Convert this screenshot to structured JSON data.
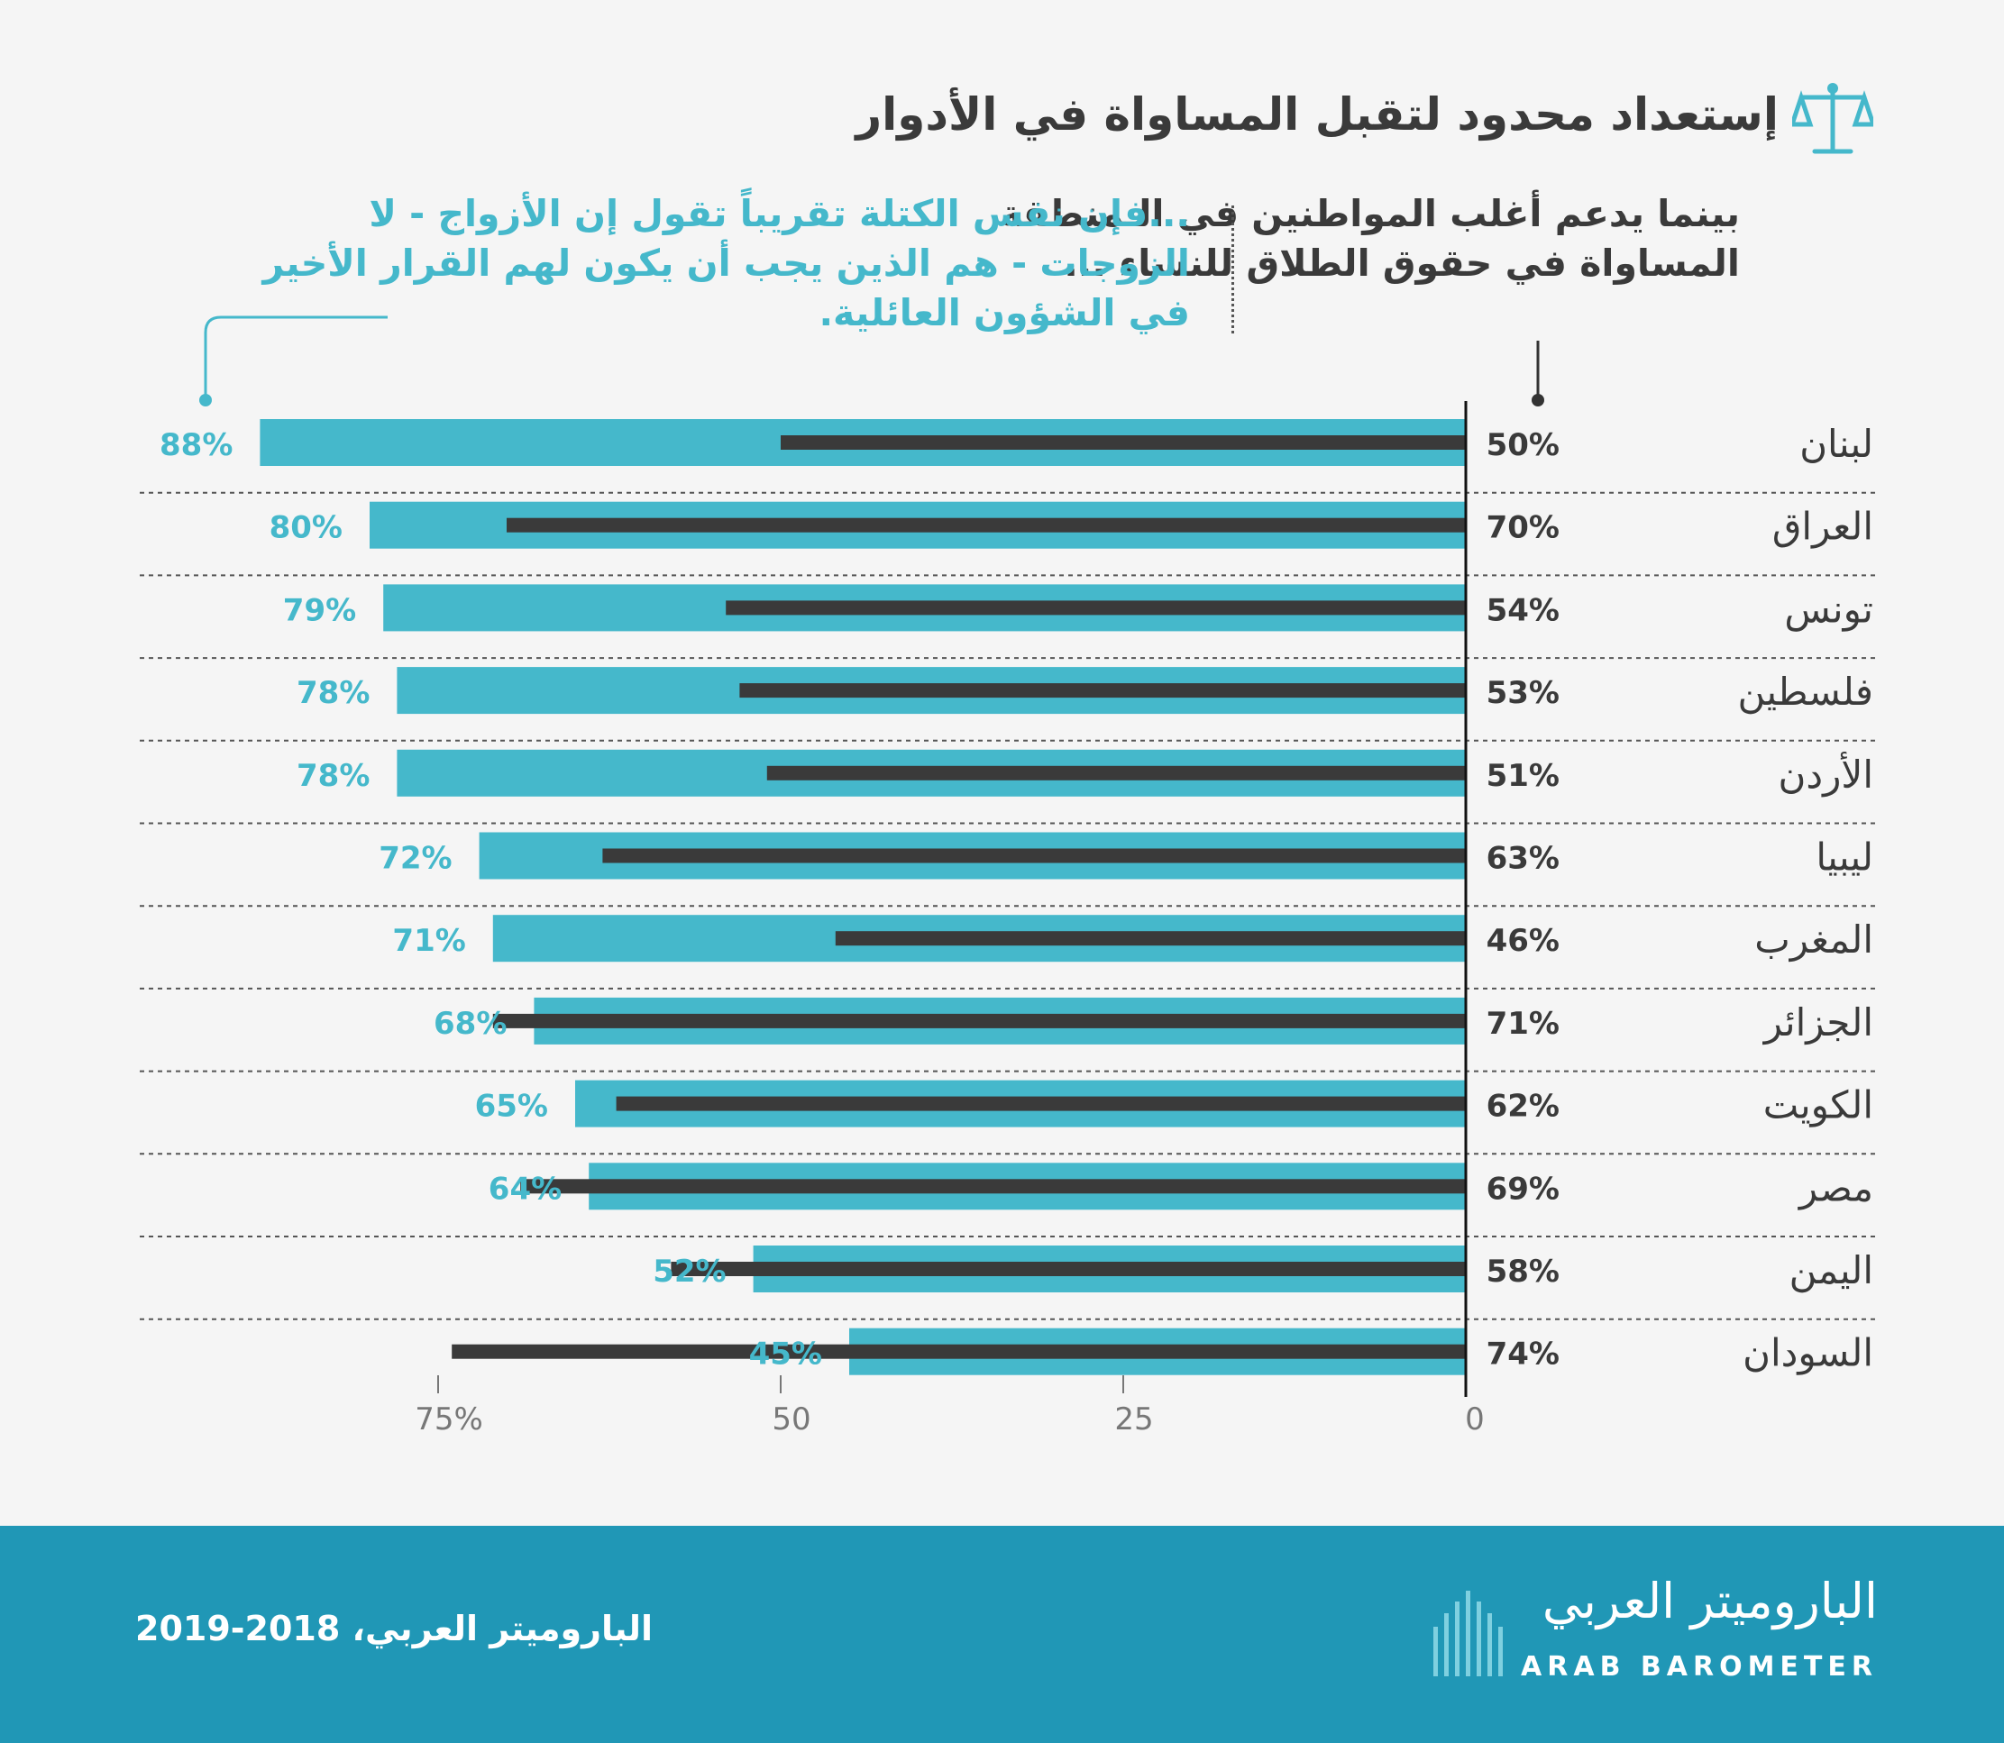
{
  "title": "إستعداد محدود لتقبل المساواة في الأدوار",
  "left_caption": "بينما يدعم أغلب المواطنين في الـمنطقة المساواة في حقوق الطلاق للنساء ...",
  "right_caption": "...فإن نفس الكتلة تقريباً تقول إن الأزواج - لا الزوجات - هم الذين يجب أن يكون لهم القرار الأخير في الشؤون العائلية.",
  "footer": {
    "source": "الباروميتر العربي، 2018-2019",
    "logo_ar": "الباروميتر العربي",
    "logo_en": "ARAB BAROMETER"
  },
  "colors": {
    "teal": "#45b8cb",
    "dark": "#3a3a3a",
    "footer": "#2097b6"
  },
  "icons": [
    "scale-icon",
    "barometer-logo-icon"
  ],
  "chart_data": {
    "type": "bar",
    "orientation": "horizontal",
    "direction": "right-to-left",
    "categories": [
      "لبنان",
      "العراق",
      "تونس",
      "فلسطين",
      "الأردن",
      "ليبيا",
      "المغرب",
      "الجزائر",
      "الكويت",
      "مصر",
      "اليمن",
      "السودان"
    ],
    "series": [
      {
        "values": [
          88,
          80,
          79,
          78,
          78,
          72,
          71,
          68,
          65,
          64,
          52,
          45
        ],
        "labels": [
          "88%",
          "80%",
          "79%",
          "78%",
          "78%",
          "72%",
          "71%",
          "68%",
          "65%",
          "64%",
          "52%",
          "45%"
        ],
        "color": "#45b8cb"
      },
      {
        "values": [
          50,
          70,
          54,
          53,
          51,
          63,
          46,
          71,
          62,
          69,
          58,
          74
        ],
        "labels": [
          "50%",
          "70%",
          "54%",
          "53%",
          "51%",
          "63%",
          "46%",
          "71%",
          "62%",
          "69%",
          "58%",
          "74%"
        ],
        "color": "#3a3a3a"
      }
    ],
    "x_ticks": [
      "0",
      "25",
      "50",
      "75%"
    ],
    "x_tick_values": [
      0,
      25,
      50,
      75
    ],
    "xlim": [
      0,
      100
    ],
    "grid": false
  }
}
